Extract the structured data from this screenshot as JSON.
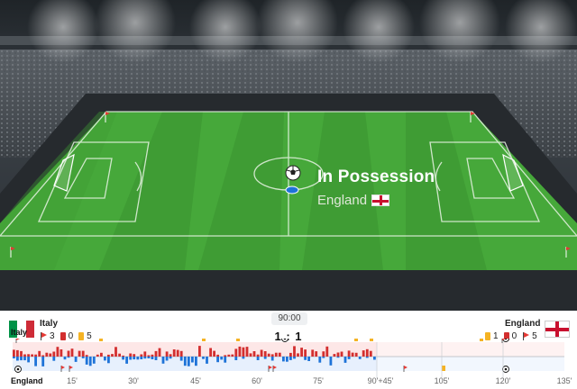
{
  "possession": {
    "title": "In Possession",
    "team": "England"
  },
  "match": {
    "clock": "90:00",
    "score": "1 : 1"
  },
  "home": {
    "name": "Italy",
    "corners": "3",
    "red_cards": "0",
    "yellow_cards": "5",
    "flag_colors": [
      "#009246",
      "#ffffff",
      "#ce2b37"
    ]
  },
  "away": {
    "name": "England",
    "yellow_cards": "1",
    "red_cards": "0",
    "corners": "5"
  },
  "timeline": {
    "top_team": "Italy",
    "bottom_team": "England",
    "ticks": [
      "15'",
      "30'",
      "45'",
      "60'",
      "75'",
      "90'+45'",
      "105'",
      "120'",
      "135'"
    ],
    "colors": {
      "home": "#d32f2f",
      "away": "#1e73d8",
      "yellow": "#f5b324"
    }
  },
  "icons": [
    "soccer-ball-icon",
    "corner-flag-icon",
    "red-card-icon",
    "yellow-card-icon",
    "ball-position-icon"
  ]
}
